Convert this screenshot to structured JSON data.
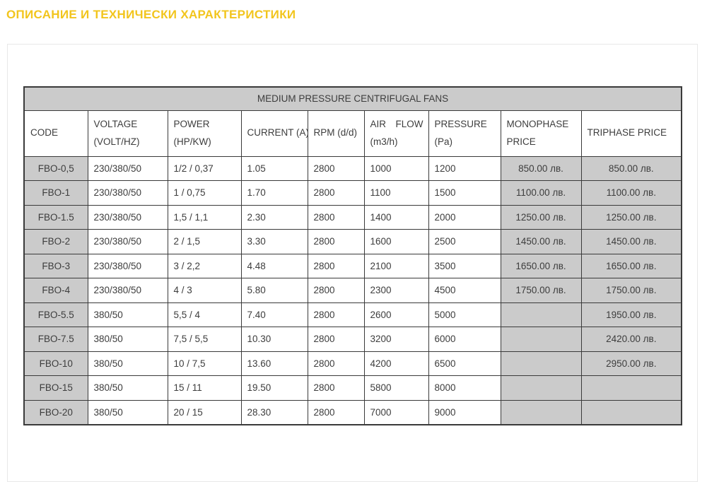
{
  "page": {
    "title": "ОПИСАНИЕ И ТЕХНИЧЕСКИ ХАРАКТЕРИСТИКИ"
  },
  "colors": {
    "accent_gold": "#F2C51D",
    "table_header_bg": "#cbcbcb",
    "table_border": "#3a3a3a",
    "text": "#3d3d3d"
  },
  "table": {
    "span_header": "MEDIUM PRESSURE CENTRIFUGAL FANS",
    "columns": [
      {
        "id": "code",
        "line1": "CODE",
        "line2": ""
      },
      {
        "id": "voltage",
        "line1": "VOLTAGE",
        "line2": "(VOLT/HZ)"
      },
      {
        "id": "power",
        "line1": "POWER",
        "line2": "(HP/KW)"
      },
      {
        "id": "current",
        "line1": "CURRENT (A)",
        "line2": ""
      },
      {
        "id": "rpm",
        "line1": "RPM (d/d)",
        "line2": ""
      },
      {
        "id": "air-flow",
        "line1": "AIR FLOW",
        "line2": "(m3/h)"
      },
      {
        "id": "pressure",
        "line1": "PRESSURE",
        "line2": "(Pa)"
      },
      {
        "id": "monophase-price",
        "line1": "MONOPHASE",
        "line2": "PRICE"
      },
      {
        "id": "triphase-price",
        "line1": "TRIPHASE PRICE",
        "line2": ""
      }
    ],
    "rows": [
      [
        "FBO-0,5",
        "230/380/50",
        "1/2 / 0,37",
        "1.05",
        "2800",
        "1000",
        "1200",
        "850.00 лв.",
        "850.00 лв."
      ],
      [
        "FBO-1",
        "230/380/50",
        "1 / 0,75",
        "1.70",
        "2800",
        "1100",
        "1500",
        "1100.00 лв.",
        "1100.00 лв."
      ],
      [
        "FBO-1.5",
        "230/380/50",
        "1,5 / 1,1",
        "2.30",
        "2800",
        "1400",
        "2000",
        "1250.00 лв.",
        "1250.00 лв."
      ],
      [
        "FBO-2",
        "230/380/50",
        "2 / 1,5",
        "3.30",
        "2800",
        "1600",
        "2500",
        "1450.00 лв.",
        "1450.00 лв."
      ],
      [
        "FBO-3",
        "230/380/50",
        "3 / 2,2",
        "4.48",
        "2800",
        "2100",
        "3500",
        "1650.00 лв.",
        "1650.00 лв."
      ],
      [
        "FBO-4",
        "230/380/50",
        "4 / 3",
        "5.80",
        "2800",
        "2300",
        "4500",
        "1750.00 лв.",
        "1750.00 лв."
      ],
      [
        "FBO-5.5",
        "380/50",
        "5,5 / 4",
        "7.40",
        "2800",
        "2600",
        "5000",
        "",
        "1950.00 лв."
      ],
      [
        "FBO-7.5",
        "380/50",
        "7,5 / 5,5",
        "10.30",
        "2800",
        "3200",
        "6000",
        "",
        "2420.00 лв."
      ],
      [
        "FBO-10",
        "380/50",
        "10 / 7,5",
        "13.60",
        "2800",
        "4200",
        "6500",
        "",
        "2950.00 лв."
      ],
      [
        "FBO-15",
        "380/50",
        "15 / 11",
        "19.50",
        "2800",
        "5800",
        "8000",
        "",
        ""
      ],
      [
        "FBO-20",
        "380/50",
        "20 / 15",
        "28.30",
        "2800",
        "7000",
        "9000",
        "",
        ""
      ]
    ]
  }
}
